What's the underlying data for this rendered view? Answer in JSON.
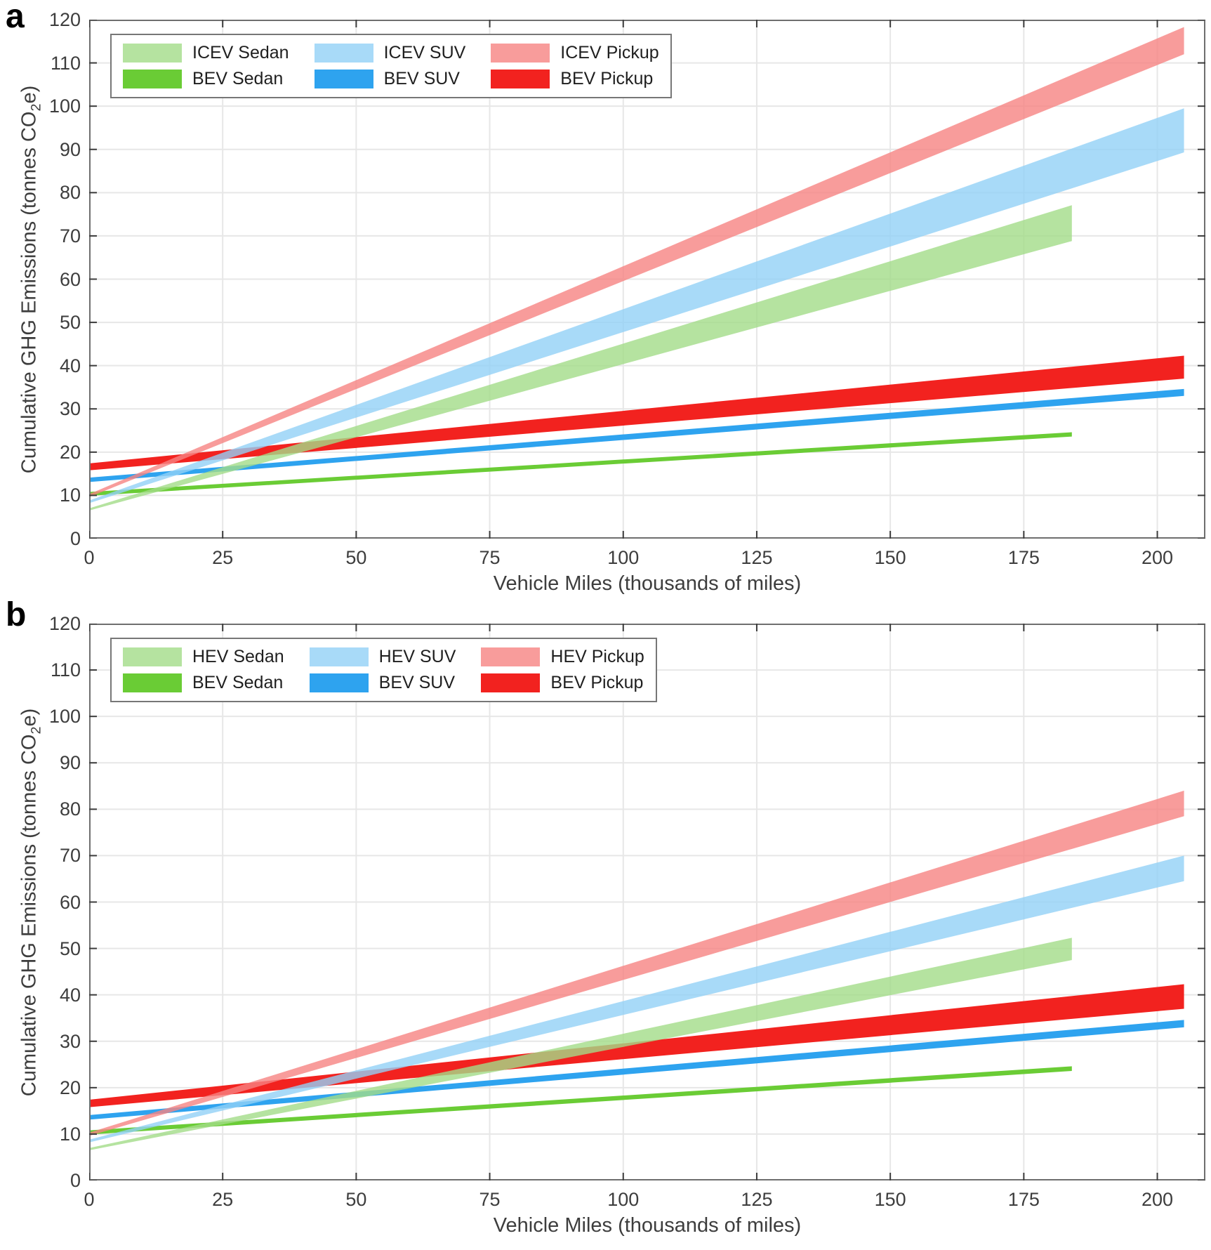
{
  "figure": {
    "background": "#ffffff",
    "colors": {
      "grid": "#e7e7e7",
      "axis_border": "#6f6f6f",
      "tick_mark": "#3c3c3c",
      "tick_text": "#3d3d3d"
    }
  },
  "chart_data": [
    {
      "type": "area",
      "panel_label": "a",
      "xlabel": "Vehicle Miles (thousands of miles)",
      "ylabel_pre": "Cumulative GHG Emissions (tonnes CO",
      "ylabel_sub": "2",
      "ylabel_post": "e)",
      "xlim": [
        0,
        209
      ],
      "ylim": [
        0,
        120
      ],
      "xticks": [
        0,
        25,
        50,
        75,
        100,
        125,
        150,
        175,
        200
      ],
      "yticks": [
        0,
        10,
        20,
        30,
        40,
        50,
        60,
        70,
        80,
        90,
        100,
        110,
        120
      ],
      "grid": true,
      "legend_position": "top-left",
      "legend": [
        {
          "label": "ICEV Sedan",
          "color": "#b5e3a0"
        },
        {
          "label": "BEV Sedan",
          "color": "#6acc35"
        },
        {
          "label": "ICEV SUV",
          "color": "#a8daf8"
        },
        {
          "label": "BEV SUV",
          "color": "#2ea3ef"
        },
        {
          "label": "ICEV Pickup",
          "color": "#f89c9b"
        },
        {
          "label": "BEV Pickup",
          "color": "#f2221f"
        }
      ],
      "series": [
        {
          "name": "BEV Sedan",
          "band": "narrow",
          "color": "#6acc35",
          "opacity": 1,
          "x": [
            0,
            184
          ],
          "y_low": [
            9.9,
            23.6
          ],
          "y_high": [
            10.8,
            24.6
          ]
        },
        {
          "name": "BEV SUV",
          "band": "narrow",
          "color": "#2ea3ef",
          "opacity": 1,
          "x": [
            0,
            205
          ],
          "y_low": [
            13.1,
            33.0
          ],
          "y_high": [
            14.1,
            34.6
          ]
        },
        {
          "name": "BEV Pickup",
          "band": "wide",
          "color": "#f2221f",
          "opacity": 1,
          "x": [
            0,
            205
          ],
          "y_low": [
            15.8,
            37.0
          ],
          "y_high": [
            17.4,
            42.3
          ]
        },
        {
          "name": "ICEV Sedan",
          "band": "wide",
          "color": "#a3dc88",
          "opacity": 0.8,
          "x": [
            0,
            184
          ],
          "y_low": [
            6.5,
            68.8
          ],
          "y_high": [
            7.0,
            77.1
          ]
        },
        {
          "name": "ICEV SUV",
          "band": "wide",
          "color": "#92d1f6",
          "opacity": 0.8,
          "x": [
            0,
            205
          ],
          "y_low": [
            8.2,
            89.3
          ],
          "y_high": [
            8.8,
            99.5
          ]
        },
        {
          "name": "ICEV Pickup",
          "band": "wide",
          "color": "#f68382",
          "opacity": 0.8,
          "x": [
            0,
            205
          ],
          "y_low": [
            9.6,
            112.0
          ],
          "y_high": [
            10.3,
            118.3
          ]
        }
      ]
    },
    {
      "type": "area",
      "panel_label": "b",
      "xlabel": "Vehicle Miles (thousands of miles)",
      "ylabel_pre": "Cumulative GHG Emissions (tonnes CO",
      "ylabel_sub": "2",
      "ylabel_post": "e)",
      "xlim": [
        0,
        209
      ],
      "ylim": [
        0,
        120
      ],
      "xticks": [
        0,
        25,
        50,
        75,
        100,
        125,
        150,
        175,
        200
      ],
      "yticks": [
        0,
        10,
        20,
        30,
        40,
        50,
        60,
        70,
        80,
        90,
        100,
        110,
        120
      ],
      "grid": true,
      "legend_position": "top-left",
      "legend": [
        {
          "label": "HEV Sedan",
          "color": "#b5e3a0"
        },
        {
          "label": "BEV Sedan",
          "color": "#6acc35"
        },
        {
          "label": "HEV SUV",
          "color": "#a8daf8"
        },
        {
          "label": "BEV SUV",
          "color": "#2ea3ef"
        },
        {
          "label": "HEV Pickup",
          "color": "#f89c9b"
        },
        {
          "label": "BEV Pickup",
          "color": "#f2221f"
        }
      ],
      "series": [
        {
          "name": "BEV Sedan",
          "band": "narrow",
          "color": "#6acc35",
          "opacity": 1,
          "x": [
            0,
            184
          ],
          "y_low": [
            9.9,
            23.6
          ],
          "y_high": [
            10.8,
            24.6
          ]
        },
        {
          "name": "BEV SUV",
          "band": "narrow",
          "color": "#2ea3ef",
          "opacity": 1,
          "x": [
            0,
            205
          ],
          "y_low": [
            13.1,
            33.0
          ],
          "y_high": [
            14.1,
            34.6
          ]
        },
        {
          "name": "BEV Pickup",
          "band": "wide",
          "color": "#f2221f",
          "opacity": 1,
          "x": [
            0,
            205
          ],
          "y_low": [
            15.8,
            37.0
          ],
          "y_high": [
            17.4,
            42.3
          ]
        },
        {
          "name": "HEV Sedan",
          "band": "wide",
          "color": "#a3dc88",
          "opacity": 0.8,
          "x": [
            0,
            184
          ],
          "y_low": [
            6.5,
            47.5
          ],
          "y_high": [
            7.0,
            52.3
          ]
        },
        {
          "name": "HEV SUV",
          "band": "wide",
          "color": "#92d1f6",
          "opacity": 0.8,
          "x": [
            0,
            205
          ],
          "y_low": [
            8.2,
            64.5
          ],
          "y_high": [
            8.8,
            70.0
          ]
        },
        {
          "name": "HEV Pickup",
          "band": "wide",
          "color": "#f68382",
          "opacity": 0.8,
          "x": [
            0,
            205
          ],
          "y_low": [
            9.6,
            78.5
          ],
          "y_high": [
            10.3,
            84.0
          ]
        }
      ]
    }
  ]
}
